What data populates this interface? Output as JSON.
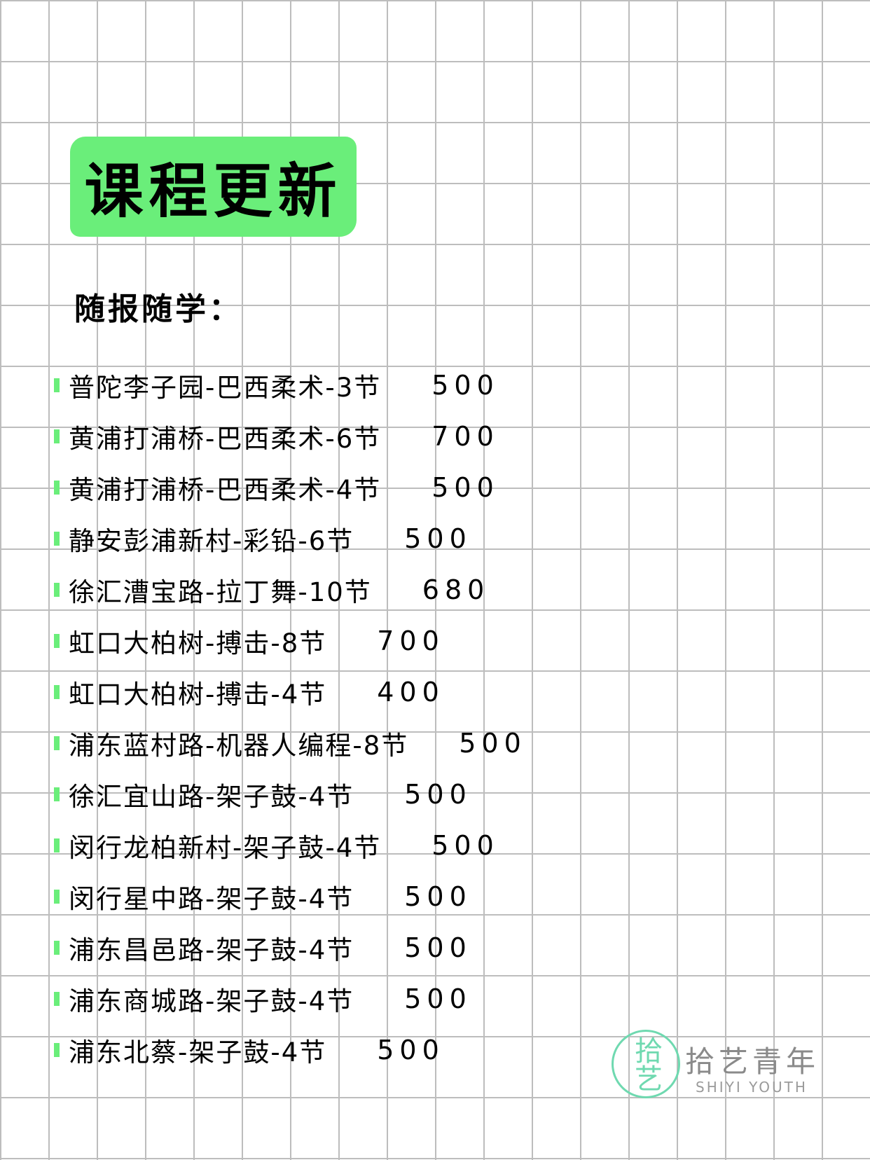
{
  "colors": {
    "accent": "#6aee7a",
    "logo": "#6fd9b0"
  },
  "header": {
    "title": "课程更新",
    "subtitle": "随报随学："
  },
  "courses": [
    {
      "name": "普陀李子园-巴西柔术-3节",
      "price": "500"
    },
    {
      "name": "黄浦打浦桥-巴西柔术-6节",
      "price": "700"
    },
    {
      "name": "黄浦打浦桥-巴西柔术-4节",
      "price": "500"
    },
    {
      "name": "静安彭浦新村-彩铅-6节",
      "price": "500"
    },
    {
      "name": "徐汇漕宝路-拉丁舞-10节",
      "price": "680"
    },
    {
      "name": "虹口大柏树-搏击-8节",
      "price": "700"
    },
    {
      "name": "虹口大柏树-搏击-4节",
      "price": "400"
    },
    {
      "name": "浦东蓝村路-机器人编程-8节",
      "price": "500"
    },
    {
      "name": "徐汇宜山路-架子鼓-4节",
      "price": "500"
    },
    {
      "name": "闵行龙柏新村-架子鼓-4节",
      "price": "500"
    },
    {
      "name": "闵行星中路-架子鼓-4节",
      "price": "500"
    },
    {
      "name": "浦东昌邑路-架子鼓-4节",
      "price": "500"
    },
    {
      "name": "浦东商城路-架子鼓-4节",
      "price": "500"
    },
    {
      "name": "浦东北蔡-架子鼓-4节",
      "price": "500"
    }
  ],
  "logo": {
    "mark": "拾艺",
    "name_cn": "拾艺青年",
    "name_en": "SHIYI YOUTH"
  }
}
